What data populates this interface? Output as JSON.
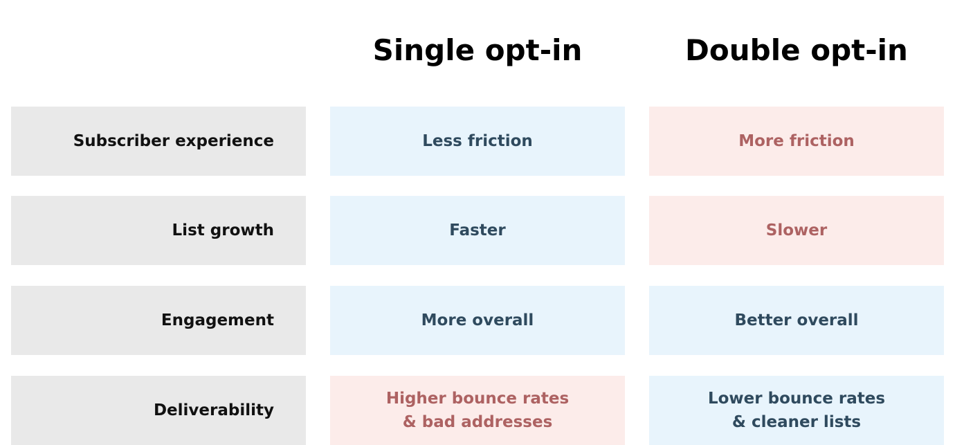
{
  "table": {
    "columns": [
      "Single opt-in",
      "Double opt-in"
    ],
    "rows": [
      {
        "label": "Subscriber experience",
        "cells": [
          {
            "text": "Less friction",
            "color": "#2f4a5e",
            "background": "#e8f4fc"
          },
          {
            "text": "More friction",
            "color": "#ad6262",
            "background": "#fcecea"
          }
        ]
      },
      {
        "label": "List growth",
        "cells": [
          {
            "text": "Faster",
            "color": "#2f4a5e",
            "background": "#e8f4fc"
          },
          {
            "text": "Slower",
            "color": "#ad6262",
            "background": "#fcecea"
          }
        ]
      },
      {
        "label": "Engagement",
        "cells": [
          {
            "text": "More overall",
            "color": "#2f4a5e",
            "background": "#e8f4fc"
          },
          {
            "text": "Better overall",
            "color": "#2f4a5e",
            "background": "#e8f4fc"
          }
        ]
      },
      {
        "label": "Deliverability",
        "cells": [
          {
            "text": "Higher bounce rates\n& bad addresses",
            "color": "#ad6262",
            "background": "#fcecea"
          },
          {
            "text": "Lower bounce rates\n& cleaner lists",
            "color": "#2f4a5e",
            "background": "#e8f4fc"
          }
        ]
      }
    ]
  }
}
